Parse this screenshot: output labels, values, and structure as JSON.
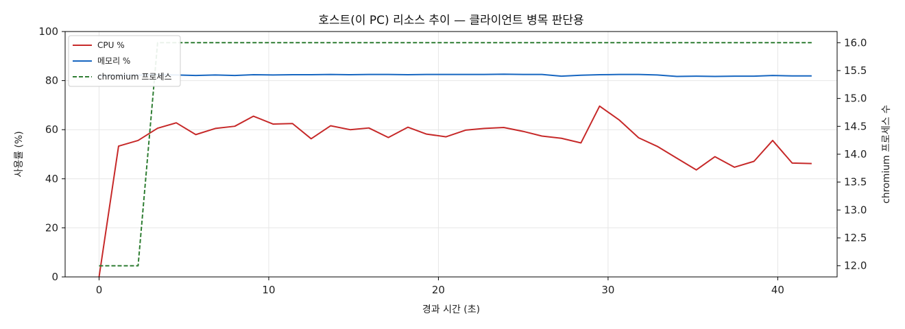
{
  "chart_data": {
    "type": "line",
    "title": "호스트(이 PC) 리소스 추이 — 클라이언트 병목 판단용",
    "xlabel": "경과 시간 (초)",
    "ylabel": "사용률 (%)",
    "y2label": "chromium 프로세스 수",
    "xlim": [
      -2,
      43.5
    ],
    "ylim": [
      0,
      100
    ],
    "y2lim": [
      11.8,
      16.2
    ],
    "xticks": [
      0,
      10,
      20,
      30,
      40
    ],
    "yticks": [
      0,
      20,
      40,
      60,
      80,
      100
    ],
    "y2ticks": [
      12.0,
      12.5,
      13.0,
      13.5,
      14.0,
      14.5,
      15.0,
      15.5,
      16.0
    ],
    "grid": true,
    "legend_position": "top-left",
    "series": [
      {
        "name": "CPU %",
        "axis": "left",
        "color": "#c62828",
        "style": "solid",
        "x": [
          0,
          1.15,
          2.3,
          3.45,
          4.55,
          5.7,
          6.85,
          8.0,
          9.1,
          10.25,
          11.4,
          12.5,
          13.65,
          14.8,
          15.9,
          17.05,
          18.2,
          19.3,
          20.45,
          21.6,
          22.7,
          23.85,
          25.0,
          26.1,
          27.25,
          28.4,
          29.5,
          30.65,
          31.8,
          32.9,
          34.05,
          35.2,
          36.3,
          37.45,
          38.6,
          39.7,
          40.85,
          42.0
        ],
        "y": [
          0,
          53.3,
          55.6,
          60.6,
          62.8,
          58.0,
          60.5,
          61.4,
          65.5,
          62.3,
          62.5,
          56.3,
          61.6,
          60.0,
          60.7,
          56.8,
          61.0,
          58.2,
          57.1,
          59.8,
          60.5,
          60.9,
          59.3,
          57.4,
          56.5,
          54.6,
          69.6,
          64.0,
          56.7,
          53.2,
          48.4,
          43.6,
          49.0,
          44.7,
          47.1,
          55.6,
          46.4,
          46.2
        ]
      },
      {
        "name": "메모리 %",
        "axis": "left",
        "color": "#1565c0",
        "style": "solid",
        "x": [
          0,
          1.15,
          2.3,
          3.45,
          4.55,
          5.7,
          6.85,
          8.0,
          9.1,
          10.25,
          11.4,
          12.5,
          13.65,
          14.8,
          15.9,
          17.05,
          18.2,
          19.3,
          20.45,
          21.6,
          22.7,
          23.85,
          25.0,
          26.1,
          27.25,
          28.4,
          29.5,
          30.65,
          31.8,
          32.9,
          34.05,
          35.2,
          36.3,
          37.45,
          38.6,
          39.7,
          40.85,
          42.0
        ],
        "y": [
          82.0,
          82.2,
          82.2,
          82.4,
          82.3,
          82.1,
          82.3,
          82.1,
          82.4,
          82.3,
          82.4,
          82.4,
          82.5,
          82.4,
          82.5,
          82.5,
          82.4,
          82.5,
          82.5,
          82.5,
          82.5,
          82.6,
          82.5,
          82.5,
          81.8,
          82.2,
          82.4,
          82.5,
          82.5,
          82.3,
          81.7,
          81.8,
          81.7,
          81.8,
          81.8,
          82.1,
          81.9,
          81.9
        ]
      },
      {
        "name": "chromium 프로세스",
        "axis": "right",
        "color": "#2e7d32",
        "style": "dashed",
        "x": [
          0,
          2.3,
          3.45,
          42.0
        ],
        "y": [
          12,
          12,
          16,
          16
        ]
      }
    ]
  }
}
